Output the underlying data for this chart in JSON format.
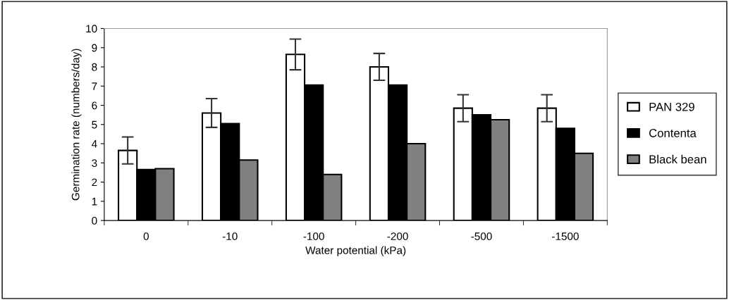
{
  "chart_data": {
    "type": "bar",
    "xlabel": "Water potential (kPa)",
    "ylabel": "Germination rate (numbers/day)",
    "categories": [
      "0",
      "-10",
      "-100",
      "-200",
      "-500",
      "-1500"
    ],
    "series": [
      {
        "name": "PAN 329",
        "color": "#ffffff",
        "values": [
          3.65,
          5.6,
          8.65,
          8.0,
          5.85,
          5.85
        ],
        "errors": [
          0.7,
          0.75,
          0.8,
          0.7,
          0.7,
          0.7
        ]
      },
      {
        "name": "Contenta",
        "color": "#000000",
        "values": [
          2.65,
          5.05,
          7.05,
          7.05,
          5.5,
          4.8
        ]
      },
      {
        "name": "Black bean",
        "color": "#808080",
        "values": [
          2.7,
          3.15,
          2.4,
          4.0,
          5.25,
          3.5
        ]
      }
    ],
    "ylim": [
      0,
      10
    ],
    "yticks": [
      0,
      1,
      2,
      3,
      4,
      5,
      6,
      7,
      8,
      9,
      10
    ],
    "grid": false,
    "legend": "right"
  }
}
